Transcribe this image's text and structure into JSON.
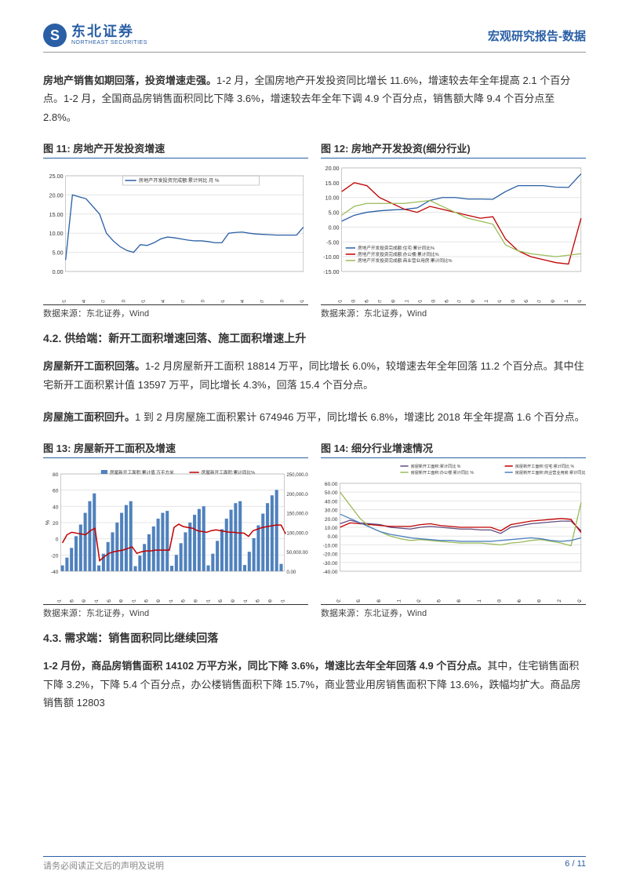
{
  "header": {
    "logo_cn": "东北证券",
    "logo_en": "NORTHEAST SECURITIES",
    "right": "宏观研究报告-数据"
  },
  "para1": {
    "bold": "房地产销售如期回落，投资增速走强。",
    "rest": "1-2 月，全国房地产开发投资同比增长 11.6%，增速较去年全年提高 2.1 个百分点。1-2 月，全国商品房销售面积同比下降 3.6%，增速较去年全年下调 4.9 个百分点，销售额大降 9.4 个百分点至 2.8%。"
  },
  "section42": "4.2.  供给端：新开工面积增速回落、施工面积增速上升",
  "para2": {
    "bold": "房屋新开工面积回落。",
    "rest": "1-2 月房屋新开工面积 18814 万平，同比增长 6.0%，较增速去年全年回落 11.2 个百分点。其中住宅新开工面积累计值 13597 万平，同比增长 4.3%，回落 15.4 个百分点。"
  },
  "para3": {
    "bold": "房屋施工面积回升。",
    "rest": "1 到 2 月房屋施工面积累计 674946 万平，同比增长 6.8%，增速比 2018 年全年提高 1.6 个百分点。"
  },
  "section43": "4.3.  需求端：销售面积同比继续回落",
  "para4": {
    "bold": "1-2 月份，商品房销售面积 14102 万平方米，同比下降 3.6%，增速比去年全年回落 4.9 个百分点。",
    "rest": "其中，住宅销售面积下降 3.2%，下降 5.4 个百分点，办公楼销售面积下降 15.7%，商业营业用房销售面积下降 13.6%，跌幅均扩大。商品房销售额 12803"
  },
  "chart11": {
    "title": "图 11:  房地产开发投资增速",
    "source": "数据来源：东北证券，Wind",
    "type": "line",
    "legend": [
      "房地产开发投资完成额:累计同比 月 %"
    ],
    "legend_colors": [
      "#2a5fa5"
    ],
    "ylim": [
      0,
      25
    ],
    "ytick_step": 5,
    "xlabels": [
      "2016-01",
      "2016-04",
      "2016-07",
      "2016-10",
      "2017-01",
      "2017-04",
      "2017-07",
      "2017-10",
      "2018-01",
      "2018-04",
      "2018-07",
      "2018-10",
      "2019-01"
    ],
    "series": [
      {
        "color": "#2a5fa5",
        "values": [
          3.0,
          20.0,
          19.5,
          19.0,
          17.0,
          15.0,
          10.0,
          8.0,
          6.5,
          5.5,
          5.0,
          7.0,
          6.8,
          7.5,
          8.5,
          9.0,
          8.8,
          8.5,
          8.2,
          8.0,
          8.0,
          7.8,
          7.5,
          7.5,
          10.0,
          10.2,
          10.3,
          10.0,
          9.8,
          9.7,
          9.6,
          9.5,
          9.5,
          9.5,
          9.5,
          11.6
        ]
      }
    ],
    "background_color": "#ffffff",
    "grid_color": "#e5e5e5"
  },
  "chart12": {
    "title": "图 12:  房地产开发投资(细分行业)",
    "source": "数据来源：东北证券，Wind",
    "type": "line",
    "legend": [
      "房地产开发投资完成额:住宅:累计同比%",
      "房地产开发投资完成额:办公楼:累计同比%",
      "房地产开发投资完成额:商业营业用房:累计同比%"
    ],
    "legend_colors": [
      "#2a5fa5",
      "#c00000",
      "#9bbb59"
    ],
    "ylim": [
      -15,
      20
    ],
    "ytick_step": 5,
    "xlabels": [
      "2016-01",
      "2016-03",
      "2016-05",
      "2016-07",
      "2016-09",
      "2016-11",
      "2017-01",
      "2017-03",
      "2017-05",
      "2017-07",
      "2017-09",
      "2017-11",
      "2018-01",
      "2018-03",
      "2018-05",
      "2018-07",
      "2018-09",
      "2018-11",
      "2019-01"
    ],
    "series": [
      {
        "color": "#2a5fa5",
        "values": [
          2,
          4,
          5,
          5.5,
          5.8,
          6.0,
          6.5,
          9,
          10,
          10,
          9.5,
          9.5,
          9.4,
          12,
          14,
          14,
          14,
          13.5,
          13.4,
          18
        ]
      },
      {
        "color": "#c00000",
        "values": [
          12,
          15,
          14,
          10,
          8,
          6,
          5,
          7,
          6,
          5,
          4,
          3,
          3.5,
          -4,
          -8,
          -10,
          -11,
          -12,
          -12.5,
          3
        ]
      },
      {
        "color": "#9bbb59",
        "values": [
          4,
          7,
          8,
          8,
          8,
          8,
          8.5,
          9,
          7,
          5,
          3,
          2,
          1,
          -6,
          -8,
          -9,
          -9.5,
          -10,
          -9.5,
          -9
        ]
      }
    ],
    "background_color": "#ffffff",
    "grid_color": "#e5e5e5"
  },
  "chart13": {
    "title": "图 13:  房屋新开工面积及增速",
    "source": "数据来源：东北证券，Wind",
    "type": "bar+line",
    "legend": [
      "房屋新开工面积:累计值 万平方米",
      "房屋新开工面积:累计同比%"
    ],
    "legend_colors": [
      "#4f81bd",
      "#c00000"
    ],
    "ylim_left": [
      -40,
      80
    ],
    "ytick_left": [
      -40,
      -20,
      0,
      20,
      40,
      60,
      80
    ],
    "ylim_right": [
      0,
      250000
    ],
    "ytick_right": [
      0,
      50000,
      100000,
      150000,
      200000,
      250000
    ],
    "xlabels": [
      "2013-01",
      "2013-05",
      "2013-09",
      "2014-01",
      "2014-05",
      "2014-09",
      "2015-01",
      "2015-05",
      "2015-09",
      "2016-01",
      "2016-05",
      "2016-09",
      "2017-01",
      "2017-05",
      "2017-09",
      "2018-01",
      "2018-05",
      "2018-09",
      "2019-01"
    ],
    "bars": {
      "color": "#4f81bd",
      "values": [
        15000,
        35000,
        60000,
        90000,
        120000,
        150000,
        180000,
        200000,
        15000,
        45000,
        75000,
        100000,
        125000,
        150000,
        170000,
        180000,
        13000,
        40000,
        70000,
        95000,
        115000,
        135000,
        150000,
        155000,
        14000,
        42000,
        72000,
        100000,
        125000,
        145000,
        160000,
        167000,
        15000,
        45000,
        78000,
        108000,
        135000,
        158000,
        175000,
        180000,
        16000,
        50000,
        85000,
        118000,
        148000,
        175000,
        195000,
        209000,
        18814
      ]
    },
    "line": {
      "color": "#c00000",
      "values": [
        -5,
        5,
        8,
        7,
        6,
        5,
        10,
        13,
        -27,
        -22,
        -18,
        -16,
        -15,
        -14,
        -12,
        -10,
        -18,
        -16,
        -15,
        -15,
        -14,
        -14,
        -14,
        -14,
        14,
        18,
        15,
        14,
        13,
        10,
        9,
        8,
        10,
        11,
        10,
        9,
        8,
        8,
        7,
        7,
        3,
        10,
        12,
        14,
        15,
        16,
        17,
        17,
        6
      ]
    },
    "background_color": "#ffffff",
    "grid_color": "#e5e5e5"
  },
  "chart14": {
    "title": "图 14:  细分行业增速情况",
    "source": "数据来源：东北证券，Wind",
    "type": "line",
    "legend": [
      "房屋新开工面积:累计同比 %",
      "房屋新开工面积:住宅:累计同比 %",
      "房屋新开工面积:办公楼:累计同比 %",
      "房屋新开工面积:商业营业用房:累计同比 %"
    ],
    "legend_colors": [
      "#604a7b",
      "#c00000",
      "#9bbb59",
      "#4f81bd"
    ],
    "ylim": [
      -40,
      60
    ],
    "ytick_step": 10,
    "xlabels": [
      "2016-02",
      "2016-05",
      "2016-08",
      "2016-11",
      "2017-02",
      "2017-05",
      "2017-08",
      "2017-11",
      "2018-03",
      "2018-06",
      "2018-09",
      "2018-12",
      "2019-02"
    ],
    "series": [
      {
        "color": "#604a7b",
        "values": [
          14,
          18,
          15,
          14,
          13,
          10,
          9,
          8,
          10,
          11,
          10,
          9,
          8,
          8,
          7,
          7,
          3,
          10,
          12,
          14,
          15,
          16,
          17,
          17,
          6
        ]
      },
      {
        "color": "#c00000",
        "values": [
          10,
          15,
          14,
          13,
          12,
          11,
          11,
          11,
          13,
          14,
          12,
          11,
          10,
          10,
          10,
          10,
          6,
          13,
          15,
          17,
          18,
          19,
          20,
          19,
          4
        ]
      },
      {
        "color": "#9bbb59",
        "values": [
          50,
          35,
          20,
          10,
          5,
          0,
          -3,
          -5,
          -4,
          -5,
          -6,
          -7,
          -8,
          -8,
          -8,
          -9,
          -10,
          -8,
          -7,
          -5,
          -4,
          -6,
          -8,
          -11,
          38
        ]
      },
      {
        "color": "#4f81bd",
        "values": [
          25,
          20,
          15,
          10,
          5,
          2,
          0,
          -2,
          -3,
          -4,
          -5,
          -5,
          -6,
          -6,
          -6,
          -6,
          -5,
          -4,
          -3,
          -2,
          -3,
          -5,
          -6,
          -5,
          -2
        ]
      }
    ],
    "background_color": "#ffffff",
    "grid_color": "#e5e5e5"
  },
  "footer": {
    "left": "请务必阅读正文后的声明及说明",
    "right": "6 / 11"
  }
}
